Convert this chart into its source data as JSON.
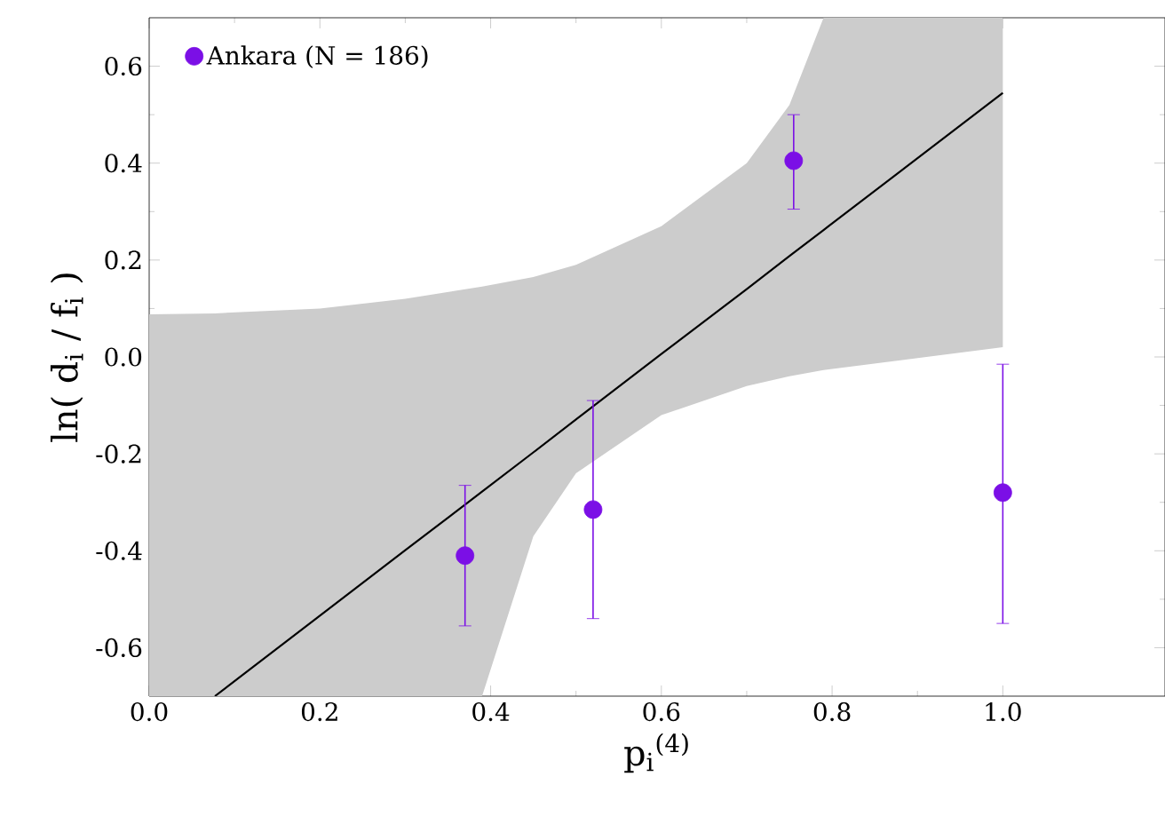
{
  "chart_data": {
    "type": "scatter",
    "xlabel": "p$_{i}$$^{(4)}$",
    "ylabel": "ln( d$_{i}$ / f$_{i}$ )",
    "xlim": [
      0,
      1.19
    ],
    "ylim": [
      -0.7,
      0.7
    ],
    "xticks": [
      {
        "value": 0,
        "label": "0.0"
      },
      {
        "value": 0.2,
        "label": "0.2"
      },
      {
        "value": 0.4,
        "label": "0.4"
      },
      {
        "value": 0.6,
        "label": "0.6"
      },
      {
        "value": 0.8,
        "label": "0.8"
      },
      {
        "value": 1.0,
        "label": "1.0"
      }
    ],
    "yticks": [
      {
        "value": -0.6,
        "label": "-0.6"
      },
      {
        "value": -0.4,
        "label": "-0.4"
      },
      {
        "value": -0.2,
        "label": "-0.2"
      },
      {
        "value": 0,
        "label": "0.0"
      },
      {
        "value": 0.2,
        "label": "0.2"
      },
      {
        "value": 0.4,
        "label": "0.4"
      },
      {
        "value": 0.6,
        "label": "0.6"
      }
    ],
    "grid": false,
    "legend": "top left",
    "series": [
      {
        "type": "line",
        "color": "#000000",
        "line_style": "solid",
        "marker": "none",
        "x": [
          0,
          0.077,
          0.2,
          0.3,
          0.39,
          0.45,
          0.5,
          0.6,
          0.7,
          0.75,
          0.79,
          1.0
        ],
        "values": [
          null,
          -0.7,
          -0.534,
          -0.399,
          -0.278,
          -0.197,
          -0.129,
          0.006,
          0.14,
          0.208,
          0.262,
          0.545
        ],
        "upper": [
          0.088,
          0.09,
          0.1,
          0.12,
          0.145,
          0.165,
          0.19,
          0.27,
          0.4,
          0.52,
          0.7,
          0.7
        ],
        "lower": [
          -0.7,
          -0.7,
          -0.7,
          -0.7,
          -0.7,
          -0.37,
          -0.24,
          -0.12,
          -0.06,
          -0.04,
          -0.027,
          0.02
        ]
      },
      {
        "type": "scatter",
        "name": "Ankara (N = 186)",
        "color": "#7b0fe6",
        "marker": "circle",
        "x": [
          0.37,
          0.52,
          0.755,
          1.0
        ],
        "values": [
          -0.41,
          -0.315,
          0.405,
          -0.28
        ],
        "errors": [
          [
            -0.555,
            -0.265
          ],
          [
            -0.54,
            -0.09
          ],
          [
            0.305,
            0.5
          ],
          [
            -0.55,
            -0.015
          ]
        ]
      }
    ]
  }
}
